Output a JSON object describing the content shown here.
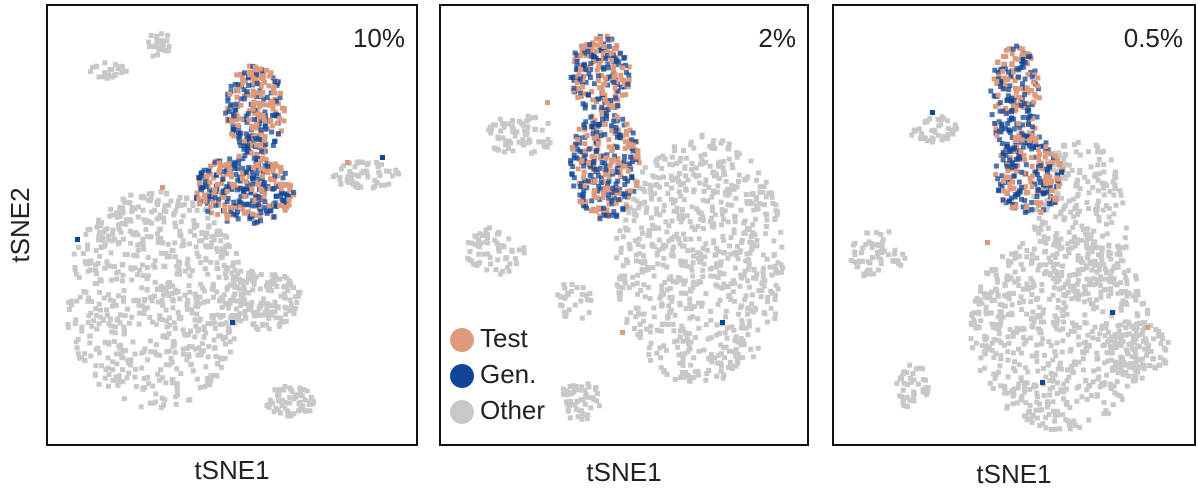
{
  "y_label": "tSNE2",
  "panels": [
    {
      "label": "10%",
      "x_label": "tSNE1"
    },
    {
      "label": "2%",
      "x_label": "tSNE1"
    },
    {
      "label": "0.5%",
      "x_label": "tSNE1"
    }
  ],
  "legend": [
    {
      "name": "Test",
      "color": "#df9a7c"
    },
    {
      "name": "Gen.",
      "color": "#0f4596"
    },
    {
      "name": "Other",
      "color": "#c8c8c8"
    }
  ]
}
